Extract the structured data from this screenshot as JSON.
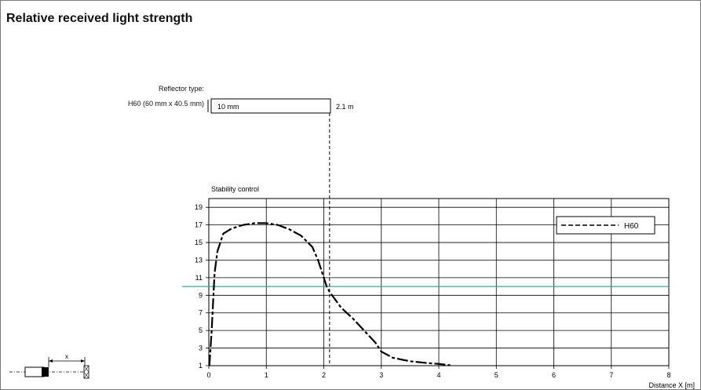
{
  "title": "Relative received light strength",
  "reflector": {
    "label": "Reflector type:",
    "name": "H60 (60 mm x 40.5 mm)",
    "range_start": "10 mm",
    "range_end": "2.1 m"
  },
  "icon_label": "x",
  "chart_data": {
    "type": "line",
    "title": "",
    "ylabel": "Stability control",
    "xlabel": "Distance X [m]",
    "xlim": [
      0,
      8
    ],
    "ylim": [
      1,
      20
    ],
    "x_ticks": [
      0,
      1,
      2,
      3,
      4,
      5,
      6,
      7,
      8
    ],
    "y_ticks": [
      1,
      3,
      5,
      7,
      9,
      11,
      13,
      15,
      17,
      19
    ],
    "grid": true,
    "legend": "top-right",
    "threshold": {
      "value": 10,
      "color": "#3aa89a"
    },
    "range_marker_x": 2.1,
    "series": [
      {
        "name": "H60",
        "style": "dashed",
        "color": "#000000",
        "x": [
          0.01,
          0.05,
          0.1,
          0.15,
          0.25,
          0.4,
          0.6,
          0.8,
          1.0,
          1.2,
          1.4,
          1.6,
          1.8,
          1.9,
          2.0,
          2.05,
          2.1,
          2.2,
          2.3,
          2.5,
          2.7,
          2.9,
          3.0,
          3.2,
          3.5,
          3.8,
          4.0,
          4.2
        ],
        "values": [
          1.0,
          5.0,
          11.5,
          14.0,
          16.0,
          16.6,
          17.0,
          17.2,
          17.2,
          17.0,
          16.5,
          15.8,
          14.5,
          13.0,
          11.0,
          10.0,
          9.4,
          8.5,
          7.6,
          6.4,
          5.0,
          3.6,
          2.6,
          1.9,
          1.5,
          1.3,
          1.2,
          1.05
        ]
      }
    ]
  }
}
